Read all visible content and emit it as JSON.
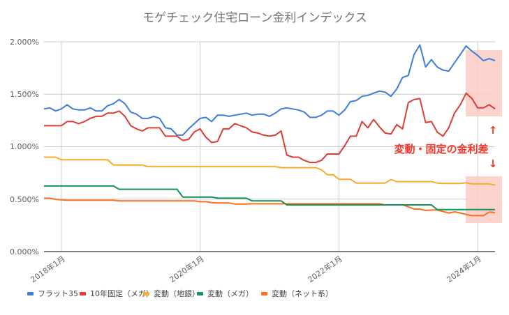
{
  "chart_data": {
    "type": "line",
    "title": "モゲチェック住宅ローン金利インデックス",
    "xlabel": "",
    "ylabel": "",
    "x_start": "2017-10",
    "x_end": "2024-04",
    "x_interval": "monthly",
    "x_ticks": [
      "2018年1月",
      "2020年1月",
      "2022年1月",
      "2024年1月"
    ],
    "y_ticks": [
      "0.000%",
      "0.500%",
      "1.000%",
      "1.500%",
      "2.000%"
    ],
    "ylim": [
      0,
      2.0
    ],
    "grid": true,
    "legend_position": "bottom",
    "series": [
      {
        "name": "フラット35",
        "color": "#3b7ddd",
        "values": [
          1.36,
          1.37,
          1.34,
          1.36,
          1.4,
          1.36,
          1.35,
          1.35,
          1.37,
          1.34,
          1.34,
          1.39,
          1.41,
          1.45,
          1.41,
          1.33,
          1.31,
          1.27,
          1.27,
          1.29,
          1.27,
          1.18,
          1.17,
          1.11,
          1.11,
          1.17,
          1.22,
          1.27,
          1.28,
          1.24,
          1.3,
          1.3,
          1.29,
          1.3,
          1.31,
          1.32,
          1.3,
          1.31,
          1.31,
          1.29,
          1.32,
          1.36,
          1.37,
          1.36,
          1.35,
          1.33,
          1.28,
          1.28,
          1.3,
          1.34,
          1.34,
          1.3,
          1.35,
          1.43,
          1.44,
          1.48,
          1.49,
          1.51,
          1.53,
          1.52,
          1.48,
          1.55,
          1.66,
          1.68,
          1.88,
          1.97,
          1.76,
          1.83,
          1.76,
          1.73,
          1.72,
          1.8,
          1.88,
          1.96,
          1.91,
          1.87,
          1.82,
          1.84,
          1.82
        ]
      },
      {
        "name": "10年固定（メガ）",
        "color": "#dd3b33",
        "values": [
          1.2,
          1.2,
          1.2,
          1.2,
          1.24,
          1.24,
          1.22,
          1.24,
          1.27,
          1.29,
          1.29,
          1.32,
          1.32,
          1.34,
          1.29,
          1.2,
          1.17,
          1.15,
          1.18,
          1.18,
          1.18,
          1.1,
          1.1,
          1.1,
          1.06,
          1.07,
          1.14,
          1.17,
          1.09,
          1.04,
          1.05,
          1.17,
          1.17,
          1.22,
          1.2,
          1.18,
          1.14,
          1.13,
          1.11,
          1.1,
          1.11,
          1.15,
          0.92,
          0.9,
          0.9,
          0.87,
          0.85,
          0.85,
          0.87,
          0.93,
          0.93,
          0.93,
          1.01,
          1.1,
          1.1,
          1.24,
          1.18,
          1.26,
          1.19,
          1.13,
          1.12,
          1.21,
          1.17,
          1.42,
          1.45,
          1.46,
          1.23,
          1.24,
          1.14,
          1.1,
          1.18,
          1.32,
          1.4,
          1.51,
          1.46,
          1.37,
          1.37,
          1.4,
          1.36
        ]
      },
      {
        "name": "変動（地銀）",
        "color": "#f9ab2b",
        "values": [
          0.9,
          0.9,
          0.9,
          0.875,
          0.875,
          0.875,
          0.875,
          0.875,
          0.875,
          0.875,
          0.875,
          0.875,
          0.825,
          0.825,
          0.825,
          0.825,
          0.825,
          0.825,
          0.81,
          0.81,
          0.81,
          0.81,
          0.81,
          0.81,
          0.81,
          0.81,
          0.81,
          0.81,
          0.81,
          0.81,
          0.81,
          0.81,
          0.81,
          0.81,
          0.81,
          0.81,
          0.81,
          0.81,
          0.81,
          0.81,
          0.81,
          0.8,
          0.8,
          0.8,
          0.8,
          0.8,
          0.8,
          0.8,
          0.78,
          0.733,
          0.733,
          0.69,
          0.69,
          0.69,
          0.653,
          0.653,
          0.653,
          0.653,
          0.653,
          0.653,
          0.687,
          0.667,
          0.667,
          0.667,
          0.667,
          0.667,
          0.667,
          0.667,
          0.653,
          0.65,
          0.65,
          0.65,
          0.65,
          0.655,
          0.645,
          0.645,
          0.645,
          0.645,
          0.634
        ]
      },
      {
        "name": "変動（メガ）",
        "color": "#0e9454",
        "values": [
          0.625,
          0.625,
          0.625,
          0.625,
          0.625,
          0.625,
          0.625,
          0.625,
          0.625,
          0.625,
          0.625,
          0.625,
          0.625,
          0.594,
          0.594,
          0.594,
          0.594,
          0.594,
          0.594,
          0.594,
          0.594,
          0.594,
          0.594,
          0.594,
          0.52,
          0.52,
          0.52,
          0.52,
          0.52,
          0.52,
          0.509,
          0.509,
          0.509,
          0.509,
          0.509,
          0.509,
          0.483,
          0.483,
          0.483,
          0.483,
          0.483,
          0.483,
          0.445,
          0.445,
          0.445,
          0.445,
          0.445,
          0.445,
          0.445,
          0.445,
          0.445,
          0.445,
          0.445,
          0.445,
          0.445,
          0.445,
          0.445,
          0.445,
          0.445,
          0.445,
          0.445,
          0.445,
          0.445,
          0.445,
          0.445,
          0.445,
          0.445,
          0.445,
          0.4,
          0.4,
          0.4,
          0.4,
          0.4,
          0.4,
          0.4,
          0.4,
          0.4,
          0.4,
          0.4
        ]
      },
      {
        "name": "変動（ネット系）",
        "color": "#ff6d1f",
        "values": [
          0.509,
          0.509,
          0.498,
          0.494,
          0.49,
          0.49,
          0.49,
          0.49,
          0.49,
          0.49,
          0.49,
          0.49,
          0.49,
          0.483,
          0.483,
          0.483,
          0.483,
          0.483,
          0.483,
          0.483,
          0.483,
          0.483,
          0.483,
          0.483,
          0.483,
          0.483,
          0.483,
          0.476,
          0.476,
          0.467,
          0.463,
          0.463,
          0.463,
          0.454,
          0.454,
          0.454,
          0.456,
          0.456,
          0.456,
          0.456,
          0.456,
          0.456,
          0.456,
          0.456,
          0.456,
          0.456,
          0.456,
          0.456,
          0.456,
          0.456,
          0.456,
          0.456,
          0.456,
          0.456,
          0.456,
          0.456,
          0.456,
          0.456,
          0.456,
          0.445,
          0.445,
          0.445,
          0.445,
          0.427,
          0.405,
          0.405,
          0.392,
          0.396,
          0.396,
          0.383,
          0.368,
          0.379,
          0.368,
          0.354,
          0.343,
          0.343,
          0.343,
          0.377,
          0.372
        ]
      }
    ],
    "annotation": {
      "text": "変動・固定の金利差",
      "up_arrow": "↑",
      "down_arrow": "↓",
      "color": "#f4362b",
      "highlight_color": "#fdcbc6"
    }
  }
}
